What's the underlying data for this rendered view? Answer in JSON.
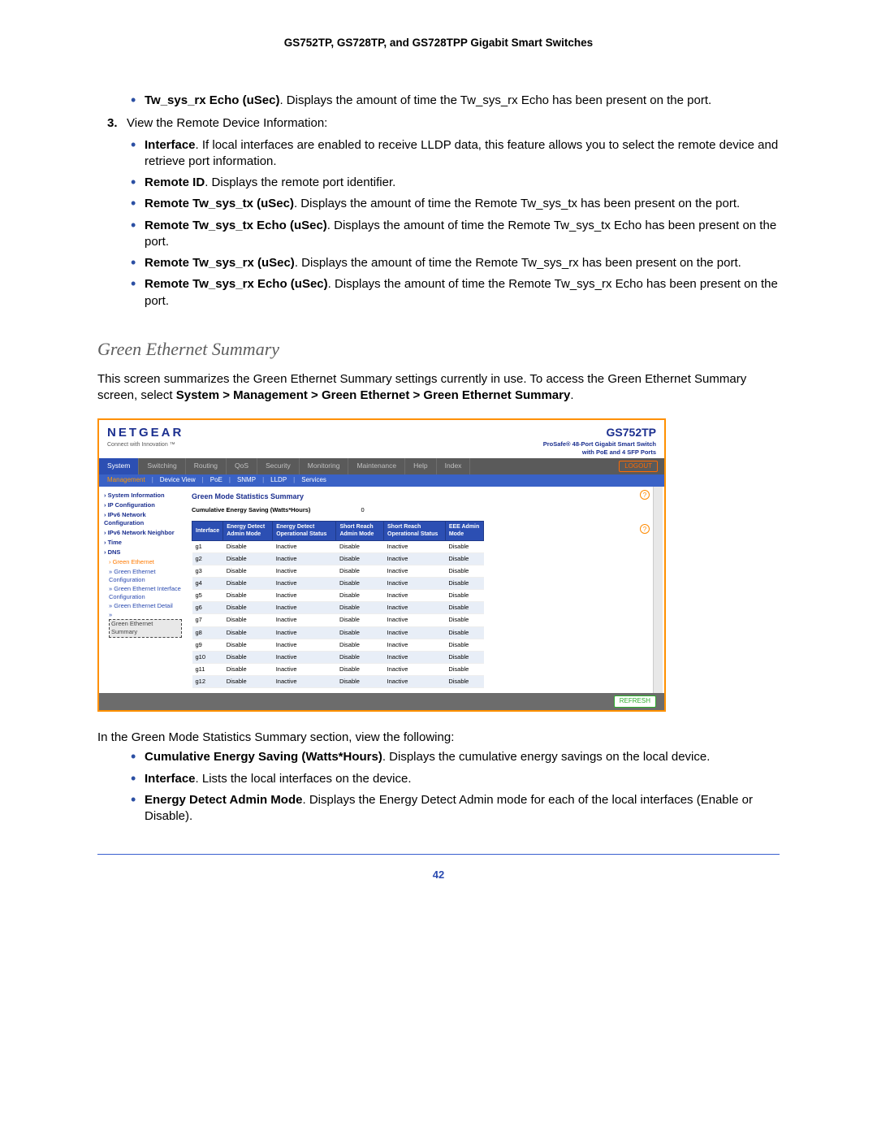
{
  "doc_header": "GS752TP, GS728TP, and GS728TPP Gigabit Smart Switches",
  "top_bullet": {
    "label": "Tw_sys_rx Echo (uSec)",
    "text": ". Displays the amount of time the Tw_sys_rx Echo has been present on the port."
  },
  "step3": {
    "num": "3.",
    "text": "View the Remote Device Information:"
  },
  "remote_bullets": [
    {
      "label": "Interface",
      "text": ". If local interfaces are enabled to receive LLDP data, this feature allows you to select the remote device and retrieve port information."
    },
    {
      "label": "Remote ID",
      "text": ". Displays the remote port identifier."
    },
    {
      "label": "Remote Tw_sys_tx (uSec)",
      "text": ". Displays the amount of time the Remote Tw_sys_tx has been present on the port."
    },
    {
      "label": "Remote Tw_sys_tx Echo (uSec)",
      "text": ". Displays the amount of time the Remote Tw_sys_tx Echo has been present on the port."
    },
    {
      "label": "Remote Tw_sys_rx (uSec)",
      "text": ". Displays the amount of time the Remote Tw_sys_rx has been present on the port."
    },
    {
      "label": "Remote Tw_sys_rx Echo (uSec)",
      "text": ". Displays the amount of time the Remote Tw_sys_rx Echo has been present on the port."
    }
  ],
  "section_title": "Green Ethernet Summary",
  "section_intro_a": "This screen summarizes the Green Ethernet Summary settings currently in use. To access the Green Ethernet Summary screen, select ",
  "section_intro_path": "System > Management > Green Ethernet > Green Ethernet Summary",
  "section_intro_end": ".",
  "screenshot": {
    "brand": "NETGEAR",
    "brand_tag": "Connect with Innovation ™",
    "product": "GS752TP",
    "product_desc1": "ProSafe® 48-Port Gigabit Smart Switch",
    "product_desc2": "with PoE and 4 SFP Ports",
    "logout": "LOGOUT",
    "tabs": [
      "System",
      "Switching",
      "Routing",
      "QoS",
      "Security",
      "Monitoring",
      "Maintenance",
      "Help",
      "Index"
    ],
    "active_tab": "System",
    "subtabs": [
      "Management",
      "Device View",
      "PoE",
      "SNMP",
      "LLDP",
      "Services"
    ],
    "subtab_selected": "Management",
    "side_groups": [
      "System Information",
      "IP Configuration",
      "IPv6 Network Configuration",
      "IPv6 Network Neighbor",
      "Time",
      "DNS"
    ],
    "side_ge_root": "Green Ethernet",
    "side_ge_items": [
      "Green Ethernet Configuration",
      "Green Ethernet Interface Configuration",
      "Green Ethernet Detail"
    ],
    "side_ge_selected": "Green Ethernet Summary",
    "panel_title": "Green Mode Statistics Summary",
    "energy_label": "Cumulative Energy Saving (Watts*Hours)",
    "energy_value": "0",
    "columns": [
      "Interface",
      "Energy Detect Admin Mode",
      "Energy Detect Operational Status",
      "Short Reach Admin Mode",
      "Short Reach Operational Status",
      "EEE Admin Mode"
    ],
    "rows": [
      [
        "g1",
        "Disable",
        "Inactive",
        "Disable",
        "Inactive",
        "Disable"
      ],
      [
        "g2",
        "Disable",
        "Inactive",
        "Disable",
        "Inactive",
        "Disable"
      ],
      [
        "g3",
        "Disable",
        "Inactive",
        "Disable",
        "Inactive",
        "Disable"
      ],
      [
        "g4",
        "Disable",
        "Inactive",
        "Disable",
        "Inactive",
        "Disable"
      ],
      [
        "g5",
        "Disable",
        "Inactive",
        "Disable",
        "Inactive",
        "Disable"
      ],
      [
        "g6",
        "Disable",
        "Inactive",
        "Disable",
        "Inactive",
        "Disable"
      ],
      [
        "g7",
        "Disable",
        "Inactive",
        "Disable",
        "Inactive",
        "Disable"
      ],
      [
        "g8",
        "Disable",
        "Inactive",
        "Disable",
        "Inactive",
        "Disable"
      ],
      [
        "g9",
        "Disable",
        "Inactive",
        "Disable",
        "Inactive",
        "Disable"
      ],
      [
        "g10",
        "Disable",
        "Inactive",
        "Disable",
        "Inactive",
        "Disable"
      ],
      [
        "g11",
        "Disable",
        "Inactive",
        "Disable",
        "Inactive",
        "Disable"
      ],
      [
        "g12",
        "Disable",
        "Inactive",
        "Disable",
        "Inactive",
        "Disable"
      ]
    ],
    "refresh": "REFRESH"
  },
  "after_ss_lead": "In the Green Mode Statistics Summary section, view the following:",
  "after_bullets": [
    {
      "label": "Cumulative Energy Saving (Watts*Hours)",
      "text": ". Displays the cumulative energy savings on the local device."
    },
    {
      "label": "Interface",
      "text": ". Lists the local interfaces on the device."
    },
    {
      "label": "Energy Detect Admin Mode",
      "text": ". Displays the Energy Detect Admin mode for each of the local interfaces (Enable or Disable)."
    }
  ],
  "page_number": "42"
}
